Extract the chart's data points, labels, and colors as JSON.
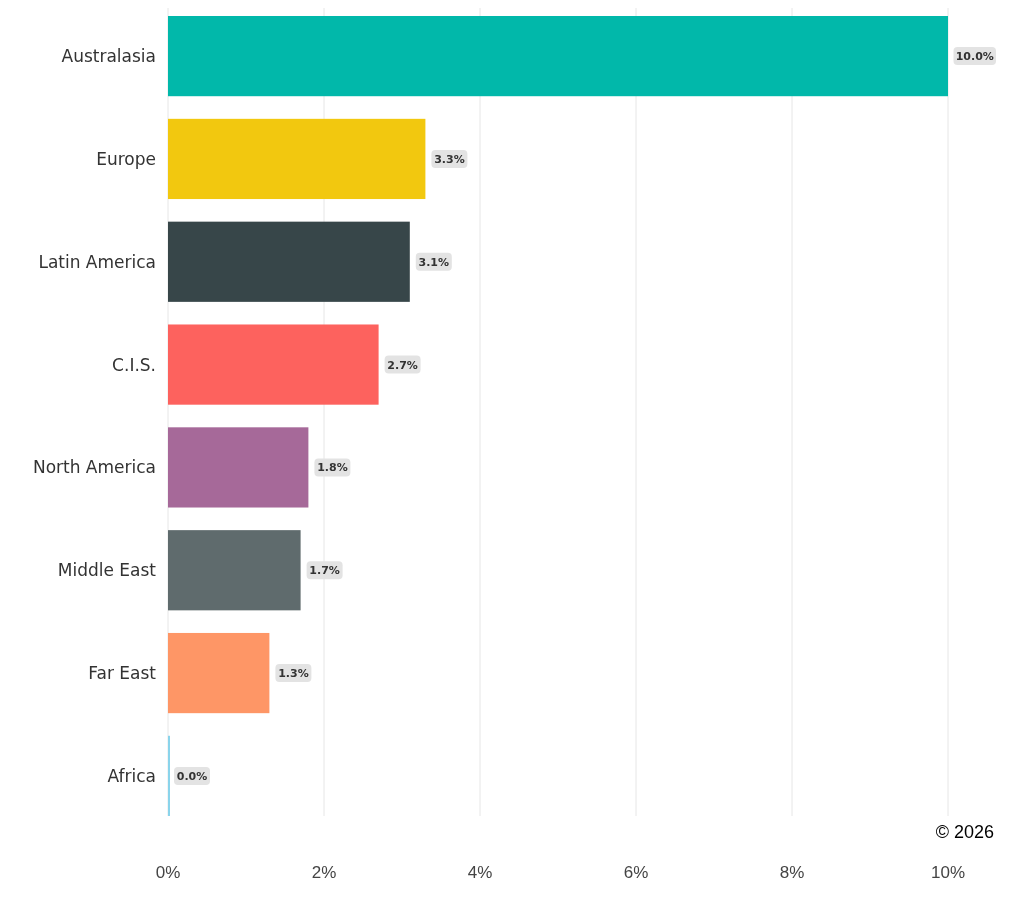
{
  "chart_data": {
    "type": "bar",
    "orientation": "horizontal",
    "categories": [
      "Australasia",
      "Europe",
      "Latin America",
      "C.I.S.",
      "North America",
      "Middle East",
      "Far East",
      "Africa"
    ],
    "values": [
      10.0,
      3.3,
      3.1,
      2.7,
      1.8,
      1.7,
      1.3,
      0.0
    ],
    "value_labels": [
      "10.0%",
      "3.3%",
      "3.1%",
      "2.7%",
      "1.8%",
      "1.7%",
      "1.3%",
      "0.0%"
    ],
    "colors": [
      "#01b8aa",
      "#f2c80f",
      "#374649",
      "#fd625e",
      "#a66999",
      "#5f6b6d",
      "#fe9666",
      "#8ad4eb"
    ],
    "xlim": [
      0,
      10
    ],
    "xticks": [
      {
        "value": 0,
        "label": "0%"
      },
      {
        "value": 2,
        "label": "2%"
      },
      {
        "value": 4,
        "label": "4%"
      },
      {
        "value": 6,
        "label": "6%"
      },
      {
        "value": 8,
        "label": "8%"
      },
      {
        "value": 10,
        "label": "10%"
      }
    ],
    "grid": "x",
    "annotations": [
      "© 2026"
    ]
  }
}
